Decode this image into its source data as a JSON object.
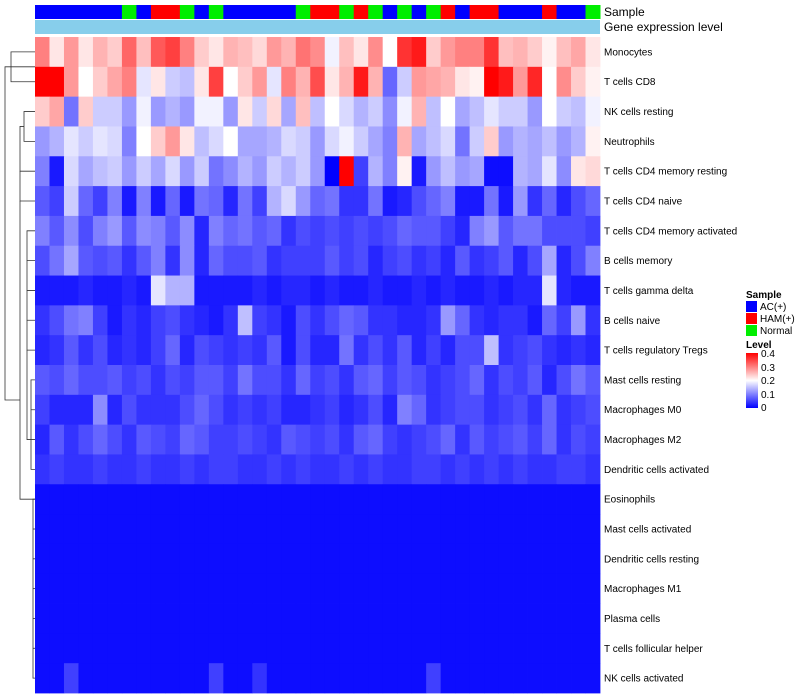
{
  "chart_data": {
    "type": "heatmap",
    "title": "",
    "annotation_tracks": [
      {
        "label": "Sample",
        "values": [
          "AC(+)",
          "AC(+)",
          "AC(+)",
          "AC(+)",
          "AC(+)",
          "AC(+)",
          "Normal",
          "AC(+)",
          "HAM(+)",
          "HAM(+)",
          "Normal",
          "AC(+)",
          "Normal",
          "AC(+)",
          "AC(+)",
          "AC(+)",
          "AC(+)",
          "AC(+)",
          "Normal",
          "HAM(+)",
          "HAM(+)",
          "Normal",
          "HAM(+)",
          "Normal",
          "AC(+)",
          "Normal",
          "AC(+)",
          "Normal",
          "HAM(+)",
          "AC(+)",
          "HAM(+)",
          "HAM(+)",
          "AC(+)",
          "AC(+)",
          "AC(+)",
          "HAM(+)",
          "AC(+)",
          "AC(+)",
          "Normal"
        ]
      },
      {
        "label": "Gene expression level",
        "values": [
          "",
          "",
          "",
          "",
          "",
          "",
          "",
          "",
          "",
          "",
          "",
          "",
          "",
          "",
          "",
          "",
          "",
          "",
          "",
          "",
          "",
          "",
          "",
          "",
          "",
          "",
          "",
          "",
          "",
          "",
          "",
          "",
          "",
          "",
          "",
          "",
          "",
          "",
          ""
        ]
      }
    ],
    "rows": [
      "Monocytes",
      "T cells CD8",
      "NK cells resting",
      "Neutrophils",
      "T cells CD4 memory resting",
      "T cells CD4 naive",
      "T cells CD4 memory activated",
      "B cells memory",
      "T cells gamma delta",
      "B cells naive",
      "T cells regulatory  Tregs",
      "Mast cells resting",
      "Macrophages M0",
      "Macrophages M2",
      "Dendritic cells activated",
      "Eosinophils",
      "Mast cells activated",
      "Dendritic cells resting",
      "Macrophages M1",
      "Plasma cells",
      "T cells follicular helper",
      "NK cells activated"
    ],
    "legends": {
      "sample": {
        "title": "Sample",
        "entries": [
          {
            "label": "AC(+)",
            "color": "#0000ff"
          },
          {
            "label": "HAM(+)",
            "color": "#ff0000"
          },
          {
            "label": "Normal",
            "color": "#00ee00"
          }
        ]
      },
      "expression_track": {
        "color": "#87ceeb"
      },
      "level": {
        "title": "Level",
        "ticks": [
          "0.4",
          "0.3",
          "0.2",
          "0.1",
          "0"
        ],
        "range": [
          0,
          0.4
        ],
        "colors": [
          "#0000ff",
          "#ffffff",
          "#ff0000"
        ]
      }
    },
    "values": [
      [
        0.3,
        0.22,
        0.28,
        0.22,
        0.26,
        0.24,
        0.32,
        0.25,
        0.33,
        0.35,
        0.3,
        0.24,
        0.22,
        0.26,
        0.25,
        0.23,
        0.28,
        0.26,
        0.31,
        0.29,
        0.19,
        0.25,
        0.22,
        0.29,
        0.2,
        0.36,
        0.38,
        0.24,
        0.28,
        0.3,
        0.3,
        0.36,
        0.25,
        0.26,
        0.24,
        0.21,
        0.25,
        0.27,
        0.22
      ],
      [
        0.4,
        0.4,
        0.28,
        0.2,
        0.24,
        0.27,
        0.3,
        0.18,
        0.22,
        0.16,
        0.15,
        0.22,
        0.35,
        0.2,
        0.24,
        0.28,
        0.18,
        0.3,
        0.26,
        0.34,
        0.22,
        0.26,
        0.38,
        0.26,
        0.08,
        0.16,
        0.28,
        0.27,
        0.26,
        0.22,
        0.21,
        0.4,
        0.38,
        0.28,
        0.37,
        0.2,
        0.29,
        0.24,
        0.21
      ],
      [
        0.24,
        0.27,
        0.09,
        0.24,
        0.16,
        0.16,
        0.12,
        0.19,
        0.12,
        0.14,
        0.12,
        0.19,
        0.19,
        0.12,
        0.22,
        0.16,
        0.23,
        0.13,
        0.25,
        0.15,
        0.2,
        0.17,
        0.14,
        0.16,
        0.11,
        0.19,
        0.26,
        0.15,
        0.2,
        0.13,
        0.15,
        0.18,
        0.16,
        0.16,
        0.12,
        0.2,
        0.16,
        0.15,
        0.19
      ],
      [
        0.12,
        0.14,
        0.18,
        0.16,
        0.18,
        0.17,
        0.1,
        0.2,
        0.24,
        0.28,
        0.22,
        0.15,
        0.17,
        0.2,
        0.13,
        0.13,
        0.14,
        0.17,
        0.16,
        0.12,
        0.17,
        0.19,
        0.16,
        0.13,
        0.1,
        0.26,
        0.13,
        0.15,
        0.17,
        0.09,
        0.16,
        0.24,
        0.12,
        0.14,
        0.13,
        0.15,
        0.12,
        0.14,
        0.21
      ],
      [
        0.1,
        0.02,
        0.17,
        0.13,
        0.15,
        0.16,
        0.12,
        0.16,
        0.13,
        0.17,
        0.12,
        0.16,
        0.09,
        0.11,
        0.14,
        0.12,
        0.16,
        0.14,
        0.16,
        0.12,
        0.0,
        0.4,
        0.05,
        0.14,
        0.1,
        0.21,
        0.02,
        0.12,
        0.15,
        0.12,
        0.13,
        0.01,
        0.01,
        0.14,
        0.13,
        0.18,
        0.11,
        0.22,
        0.23
      ],
      [
        0.07,
        0.05,
        0.16,
        0.08,
        0.05,
        0.1,
        0.02,
        0.1,
        0.02,
        0.08,
        0.02,
        0.09,
        0.08,
        0.03,
        0.09,
        0.05,
        0.14,
        0.17,
        0.12,
        0.08,
        0.09,
        0.04,
        0.04,
        0.09,
        0.02,
        0.03,
        0.06,
        0.08,
        0.1,
        0.02,
        0.02,
        0.09,
        0.02,
        0.12,
        0.04,
        0.08,
        0.03,
        0.06,
        0.08
      ],
      [
        0.1,
        0.07,
        0.11,
        0.06,
        0.1,
        0.12,
        0.07,
        0.11,
        0.1,
        0.07,
        0.11,
        0.03,
        0.1,
        0.08,
        0.09,
        0.07,
        0.08,
        0.04,
        0.06,
        0.05,
        0.06,
        0.05,
        0.06,
        0.05,
        0.06,
        0.08,
        0.07,
        0.07,
        0.05,
        0.03,
        0.1,
        0.12,
        0.07,
        0.09,
        0.09,
        0.06,
        0.06,
        0.06,
        0.05
      ],
      [
        0.06,
        0.09,
        0.13,
        0.07,
        0.06,
        0.07,
        0.04,
        0.07,
        0.1,
        0.04,
        0.11,
        0.03,
        0.08,
        0.06,
        0.06,
        0.07,
        0.04,
        0.05,
        0.05,
        0.05,
        0.07,
        0.05,
        0.06,
        0.03,
        0.05,
        0.06,
        0.04,
        0.05,
        0.03,
        0.07,
        0.04,
        0.05,
        0.07,
        0.03,
        0.06,
        0.13,
        0.03,
        0.06,
        0.1
      ],
      [
        0.02,
        0.02,
        0.02,
        0.03,
        0.02,
        0.02,
        0.03,
        0.02,
        0.18,
        0.14,
        0.14,
        0.02,
        0.02,
        0.02,
        0.02,
        0.03,
        0.02,
        0.03,
        0.03,
        0.02,
        0.03,
        0.02,
        0.02,
        0.03,
        0.02,
        0.02,
        0.03,
        0.02,
        0.03,
        0.02,
        0.02,
        0.03,
        0.02,
        0.03,
        0.03,
        0.18,
        0.03,
        0.02,
        0.02
      ],
      [
        0.04,
        0.06,
        0.09,
        0.1,
        0.05,
        0.02,
        0.04,
        0.03,
        0.05,
        0.06,
        0.04,
        0.03,
        0.02,
        0.04,
        0.15,
        0.05,
        0.04,
        0.02,
        0.06,
        0.04,
        0.06,
        0.08,
        0.07,
        0.04,
        0.04,
        0.03,
        0.03,
        0.04,
        0.12,
        0.08,
        0.04,
        0.03,
        0.04,
        0.04,
        0.02,
        0.08,
        0.05,
        0.12,
        0.04
      ],
      [
        0.03,
        0.04,
        0.07,
        0.04,
        0.06,
        0.03,
        0.04,
        0.03,
        0.05,
        0.08,
        0.03,
        0.06,
        0.05,
        0.04,
        0.05,
        0.04,
        0.07,
        0.02,
        0.06,
        0.03,
        0.03,
        0.09,
        0.04,
        0.06,
        0.04,
        0.07,
        0.03,
        0.05,
        0.03,
        0.06,
        0.06,
        0.15,
        0.04,
        0.05,
        0.06,
        0.04,
        0.03,
        0.04,
        0.03
      ],
      [
        0.07,
        0.06,
        0.08,
        0.06,
        0.06,
        0.07,
        0.05,
        0.06,
        0.04,
        0.06,
        0.05,
        0.07,
        0.07,
        0.05,
        0.09,
        0.06,
        0.06,
        0.04,
        0.08,
        0.05,
        0.06,
        0.04,
        0.07,
        0.08,
        0.05,
        0.07,
        0.06,
        0.04,
        0.05,
        0.06,
        0.08,
        0.04,
        0.06,
        0.05,
        0.07,
        0.03,
        0.06,
        0.09,
        0.07
      ],
      [
        0.05,
        0.03,
        0.03,
        0.03,
        0.11,
        0.03,
        0.06,
        0.04,
        0.04,
        0.04,
        0.06,
        0.08,
        0.06,
        0.04,
        0.05,
        0.04,
        0.05,
        0.03,
        0.03,
        0.04,
        0.05,
        0.03,
        0.04,
        0.06,
        0.03,
        0.1,
        0.08,
        0.04,
        0.05,
        0.06,
        0.06,
        0.04,
        0.05,
        0.06,
        0.04,
        0.08,
        0.04,
        0.05,
        0.06
      ],
      [
        0.03,
        0.07,
        0.04,
        0.06,
        0.08,
        0.06,
        0.04,
        0.07,
        0.06,
        0.05,
        0.08,
        0.07,
        0.05,
        0.05,
        0.06,
        0.05,
        0.04,
        0.07,
        0.06,
        0.05,
        0.06,
        0.04,
        0.07,
        0.08,
        0.05,
        0.04,
        0.05,
        0.06,
        0.08,
        0.04,
        0.07,
        0.05,
        0.06,
        0.07,
        0.05,
        0.08,
        0.04,
        0.06,
        0.05
      ],
      [
        0.04,
        0.05,
        0.04,
        0.04,
        0.05,
        0.04,
        0.04,
        0.05,
        0.04,
        0.04,
        0.05,
        0.04,
        0.05,
        0.05,
        0.04,
        0.04,
        0.05,
        0.04,
        0.05,
        0.04,
        0.04,
        0.05,
        0.04,
        0.05,
        0.04,
        0.04,
        0.05,
        0.05,
        0.04,
        0.05,
        0.04,
        0.05,
        0.04,
        0.05,
        0.04,
        0.04,
        0.05,
        0.05,
        0.04
      ],
      [
        0.01,
        0.01,
        0.01,
        0.01,
        0.01,
        0.01,
        0.01,
        0.01,
        0.01,
        0.01,
        0.01,
        0.01,
        0.01,
        0.01,
        0.01,
        0.01,
        0.01,
        0.01,
        0.01,
        0.01,
        0.01,
        0.01,
        0.01,
        0.01,
        0.01,
        0.01,
        0.01,
        0.01,
        0.01,
        0.01,
        0.01,
        0.01,
        0.01,
        0.01,
        0.01,
        0.01,
        0.01,
        0.01,
        0.01
      ],
      [
        0.01,
        0.01,
        0.01,
        0.01,
        0.01,
        0.01,
        0.01,
        0.01,
        0.01,
        0.01,
        0.01,
        0.01,
        0.01,
        0.01,
        0.01,
        0.01,
        0.01,
        0.01,
        0.01,
        0.01,
        0.01,
        0.01,
        0.01,
        0.01,
        0.01,
        0.01,
        0.01,
        0.01,
        0.01,
        0.01,
        0.01,
        0.01,
        0.01,
        0.01,
        0.01,
        0.01,
        0.01,
        0.01,
        0.01
      ],
      [
        0.01,
        0.01,
        0.01,
        0.01,
        0.01,
        0.01,
        0.01,
        0.01,
        0.01,
        0.01,
        0.01,
        0.01,
        0.01,
        0.01,
        0.01,
        0.01,
        0.01,
        0.01,
        0.01,
        0.01,
        0.01,
        0.01,
        0.01,
        0.01,
        0.01,
        0.01,
        0.01,
        0.01,
        0.01,
        0.01,
        0.01,
        0.01,
        0.01,
        0.01,
        0.01,
        0.01,
        0.01,
        0.01,
        0.01
      ],
      [
        0.01,
        0.01,
        0.01,
        0.01,
        0.01,
        0.01,
        0.01,
        0.01,
        0.01,
        0.01,
        0.01,
        0.01,
        0.01,
        0.01,
        0.01,
        0.01,
        0.01,
        0.01,
        0.01,
        0.01,
        0.01,
        0.01,
        0.01,
        0.01,
        0.01,
        0.01,
        0.01,
        0.01,
        0.01,
        0.01,
        0.01,
        0.01,
        0.01,
        0.01,
        0.01,
        0.01,
        0.01,
        0.01,
        0.01
      ],
      [
        0.01,
        0.01,
        0.01,
        0.01,
        0.01,
        0.01,
        0.01,
        0.01,
        0.01,
        0.01,
        0.01,
        0.01,
        0.01,
        0.01,
        0.01,
        0.01,
        0.01,
        0.01,
        0.01,
        0.01,
        0.01,
        0.01,
        0.01,
        0.01,
        0.01,
        0.01,
        0.01,
        0.01,
        0.01,
        0.01,
        0.01,
        0.01,
        0.01,
        0.01,
        0.01,
        0.01,
        0.01,
        0.01,
        0.01
      ],
      [
        0.01,
        0.01,
        0.01,
        0.01,
        0.01,
        0.01,
        0.01,
        0.01,
        0.01,
        0.01,
        0.01,
        0.01,
        0.01,
        0.01,
        0.01,
        0.01,
        0.01,
        0.01,
        0.01,
        0.01,
        0.01,
        0.01,
        0.01,
        0.01,
        0.01,
        0.01,
        0.01,
        0.01,
        0.01,
        0.01,
        0.01,
        0.01,
        0.01,
        0.01,
        0.01,
        0.01,
        0.01,
        0.01,
        0.01
      ],
      [
        0.01,
        0.01,
        0.05,
        0.01,
        0.01,
        0.01,
        0.01,
        0.01,
        0.01,
        0.01,
        0.01,
        0.01,
        0.05,
        0.01,
        0.01,
        0.04,
        0.01,
        0.01,
        0.01,
        0.01,
        0.01,
        0.01,
        0.01,
        0.01,
        0.01,
        0.01,
        0.01,
        0.05,
        0.01,
        0.01,
        0.01,
        0.01,
        0.01,
        0.01,
        0.01,
        0.01,
        0.01,
        0.01,
        0.01
      ]
    ]
  }
}
